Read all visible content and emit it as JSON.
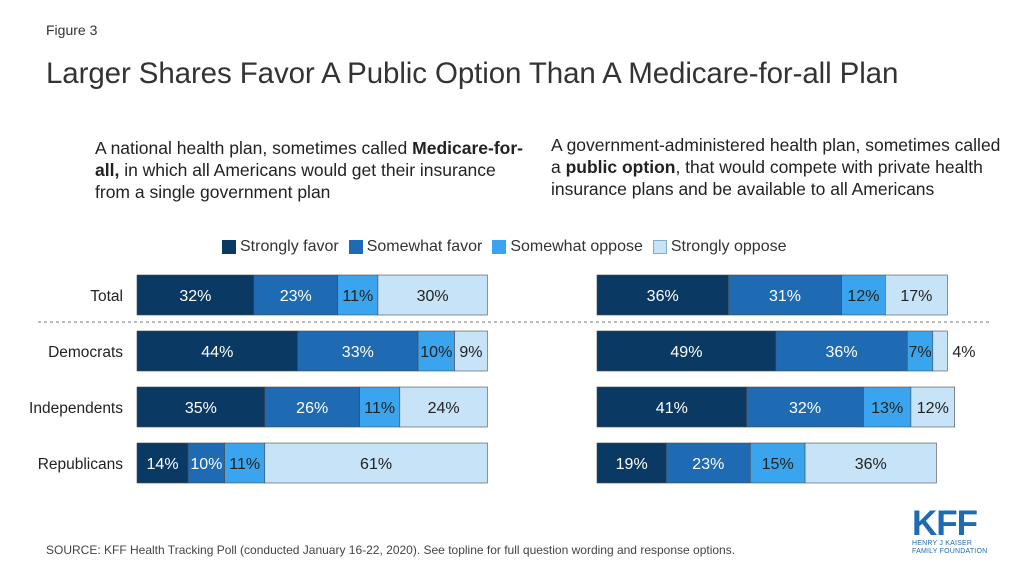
{
  "figure_label": "Figure 3",
  "title": "Larger Shares Favor A Public Option Than A Medicare-for-all Plan",
  "question_left": {
    "pre": "A national health plan, sometimes called ",
    "bold": "Medicare-for-all,",
    "post": " in which all Americans would get their insurance from a single government plan"
  },
  "question_right": {
    "pre": "A government-administered health plan, sometimes called a ",
    "bold": "public option",
    "post": ", that would compete with private health insurance plans and be available to all Americans"
  },
  "source": "SOURCE: KFF Health Tracking Poll (conducted January 16-22, 2020). See topline for full question wording and response options.",
  "logo": {
    "text": "KFF",
    "line1": "HENRY J KAISER",
    "line2": "FAMILY FOUNDATION"
  },
  "colors": {
    "strongly_favor": "#0a3a63",
    "somewhat_favor": "#1f6bb3",
    "somewhat_oppose": "#3aa5ee",
    "strongly_oppose": "#c7e3f8"
  },
  "chart_data": {
    "type": "bar",
    "orientation": "horizontal",
    "stacked": true,
    "unit": "%",
    "categories": [
      "Total",
      "Democrats",
      "Independents",
      "Republicans"
    ],
    "legend": [
      "Strongly favor",
      "Somewhat favor",
      "Somewhat oppose",
      "Strongly oppose"
    ],
    "legend_position": "top",
    "panels": [
      {
        "name": "Medicare-for-all",
        "series": [
          {
            "name": "Strongly favor",
            "values": [
              32,
              44,
              35,
              14
            ]
          },
          {
            "name": "Somewhat favor",
            "values": [
              23,
              33,
              26,
              10
            ]
          },
          {
            "name": "Somewhat oppose",
            "values": [
              11,
              10,
              11,
              11
            ]
          },
          {
            "name": "Strongly oppose",
            "values": [
              30,
              9,
              24,
              61
            ]
          }
        ]
      },
      {
        "name": "Public option",
        "series": [
          {
            "name": "Strongly favor",
            "values": [
              36,
              49,
              41,
              19
            ]
          },
          {
            "name": "Somewhat favor",
            "values": [
              31,
              36,
              32,
              23
            ]
          },
          {
            "name": "Somewhat oppose",
            "values": [
              12,
              7,
              13,
              15
            ]
          },
          {
            "name": "Strongly oppose",
            "values": [
              17,
              4,
              12,
              36
            ]
          }
        ]
      }
    ]
  }
}
